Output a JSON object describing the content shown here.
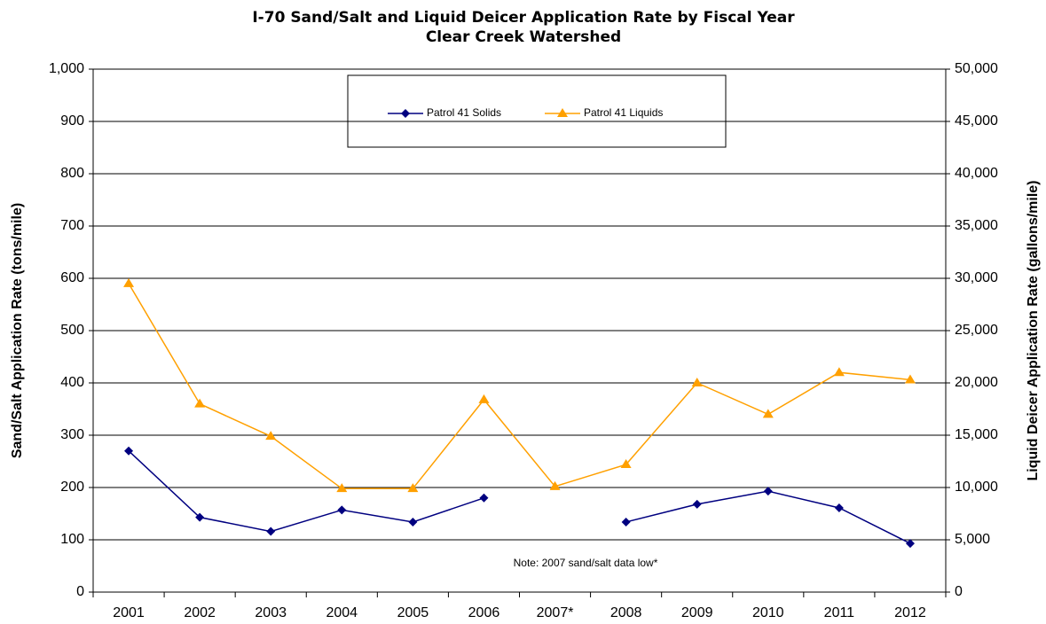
{
  "chart_data": {
    "type": "line",
    "title": "I-70 Sand/Salt and Liquid Deicer Application Rate by Fiscal Year",
    "subtitle": "Clear Creek Watershed",
    "ylabel": "Sand/Salt Application  Rate (tons/mile)",
    "y2label": "Liquid Deicer Application Rate (gallons/mile)",
    "annotation": "Note: 2007 sand/salt data low*",
    "categories": [
      "2001",
      "2002",
      "2003",
      "2004",
      "2005",
      "2006",
      "2007*",
      "2008",
      "2009",
      "2010",
      "2011",
      "2012"
    ],
    "series": [
      {
        "name": "Patrol 41 Solids",
        "color": "#000080",
        "marker": "diamond",
        "values": [
          270,
          143,
          116,
          157,
          134,
          180,
          null,
          134,
          168,
          193,
          161,
          93
        ]
      },
      {
        "name": "Patrol 41 Liquids",
        "color": "#ffa000",
        "marker": "triangle",
        "axis": "y2",
        "values": [
          29500,
          18000,
          14900,
          9900,
          9900,
          18400,
          10100,
          12200,
          20000,
          17000,
          21000,
          20300
        ]
      }
    ],
    "ylim": [
      0,
      1000
    ],
    "yticks": [
      0,
      100,
      200,
      300,
      400,
      500,
      600,
      700,
      800,
      900,
      {
        "value": 1000,
        "label": "1,000"
      }
    ],
    "y2lim": [
      0,
      50000
    ],
    "y2ticks": [
      0,
      {
        "value": 5000,
        "label": "5,000"
      },
      {
        "value": 10000,
        "label": "10,000"
      },
      {
        "value": 15000,
        "label": "15,000"
      },
      {
        "value": 20000,
        "label": "20,000"
      },
      {
        "value": 25000,
        "label": "25,000"
      },
      {
        "value": 30000,
        "label": "30,000"
      },
      {
        "value": 35000,
        "label": "35,000"
      },
      {
        "value": 40000,
        "label": "40,000"
      },
      {
        "value": 45000,
        "label": "45,000"
      },
      {
        "value": 50000,
        "label": "50,000"
      }
    ],
    "grid": true,
    "legend": "top"
  }
}
